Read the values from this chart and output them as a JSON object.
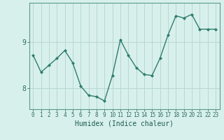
{
  "x": [
    0,
    1,
    2,
    3,
    4,
    5,
    6,
    7,
    8,
    9,
    10,
    11,
    12,
    13,
    14,
    15,
    16,
    17,
    18,
    19,
    20,
    21,
    22,
    23
  ],
  "y": [
    8.72,
    8.35,
    8.5,
    8.65,
    8.82,
    8.55,
    8.05,
    7.85,
    7.82,
    7.73,
    8.28,
    9.05,
    8.72,
    8.45,
    8.3,
    8.28,
    8.65,
    9.15,
    9.57,
    9.52,
    9.6,
    9.28,
    9.28,
    9.28
  ],
  "xlabel": "Humidex (Indice chaleur)",
  "line_color": "#2e7d6e",
  "marker": "D",
  "marker_size": 2,
  "bg_color": "#d8f0ec",
  "grid_color": "#b8d8d0",
  "axis_color": "#5a9a8a",
  "tick_color": "#2e6e60",
  "ylim": [
    7.55,
    9.85
  ],
  "yticks": [
    8,
    9
  ],
  "xlim": [
    -0.5,
    23.5
  ],
  "xticks": [
    0,
    1,
    2,
    3,
    4,
    5,
    6,
    7,
    8,
    9,
    10,
    11,
    12,
    13,
    14,
    15,
    16,
    17,
    18,
    19,
    20,
    21,
    22,
    23
  ],
  "font_color": "#1a5c50",
  "linewidth": 1.0,
  "xlabel_fontsize": 7,
  "tick_fontsize": 5.5,
  "ytick_fontsize": 7
}
